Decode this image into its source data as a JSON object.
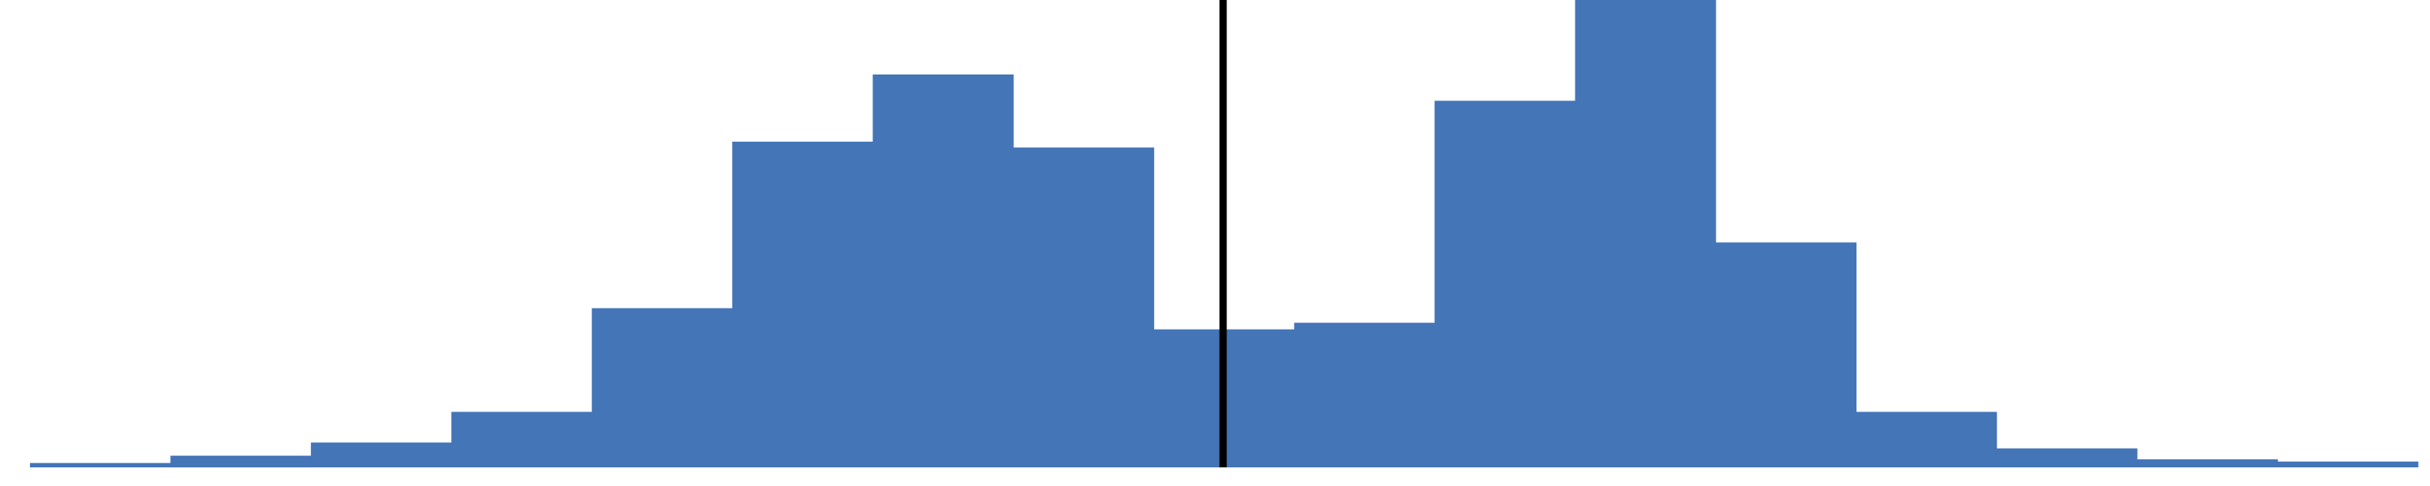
{
  "chart_data": {
    "type": "bar",
    "title": "",
    "xlabel": "",
    "ylabel": "",
    "values": [
      0.6,
      1.6,
      3.4,
      7.6,
      21.8,
      44.6,
      53.8,
      43.8,
      18.9,
      19.8,
      50.2,
      64.0,
      30.8,
      7.6,
      2.6,
      1.1,
      0.8
    ],
    "ylim": [
      0,
      64
    ],
    "grid": false,
    "legend": "none",
    "bar_color": "#4375b7",
    "reference_line": {
      "x_fraction": 0.5,
      "color": "#000000"
    }
  }
}
